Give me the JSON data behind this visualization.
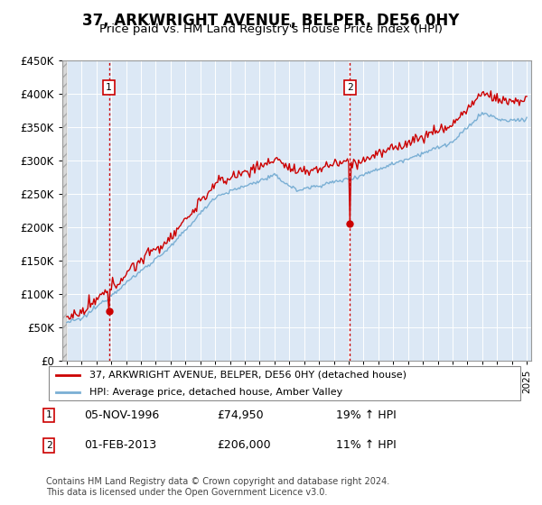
{
  "title": "37, ARKWRIGHT AVENUE, BELPER, DE56 0HY",
  "subtitle": "Price paid vs. HM Land Registry's House Price Index (HPI)",
  "title_fontsize": 12,
  "subtitle_fontsize": 9.5,
  "ylim": [
    0,
    450000
  ],
  "yticks": [
    0,
    50000,
    100000,
    150000,
    200000,
    250000,
    300000,
    350000,
    400000,
    450000
  ],
  "ytick_labels": [
    "£0",
    "£50K",
    "£100K",
    "£150K",
    "£200K",
    "£250K",
    "£300K",
    "£350K",
    "£400K",
    "£450K"
  ],
  "sale1_date": "05-NOV-1996",
  "sale1_price": 74950,
  "sale1_price_str": "£74,950",
  "sale1_hpi_pct": "19%",
  "sale1_t": 1996.84,
  "sale2_date": "01-FEB-2013",
  "sale2_price": 206000,
  "sale2_price_str": "£206,000",
  "sale2_hpi_pct": "11%",
  "sale2_t": 2013.08,
  "line_color_price": "#cc0000",
  "line_color_hpi": "#7aafd4",
  "plot_bg_color": "#dce8f5",
  "hatch_facecolor": "#d0d0d0",
  "legend_label_price": "37, ARKWRIGHT AVENUE, BELPER, DE56 0HY (detached house)",
  "legend_label_hpi": "HPI: Average price, detached house, Amber Valley",
  "footer": "Contains HM Land Registry data © Crown copyright and database right 2024.\nThis data is licensed under the Open Government Licence v3.0.",
  "grid_color": "#ffffff",
  "box_edge_color": "#cc0000",
  "fig_bg": "#ffffff",
  "xmin": 1993.7,
  "xmax": 2025.3
}
